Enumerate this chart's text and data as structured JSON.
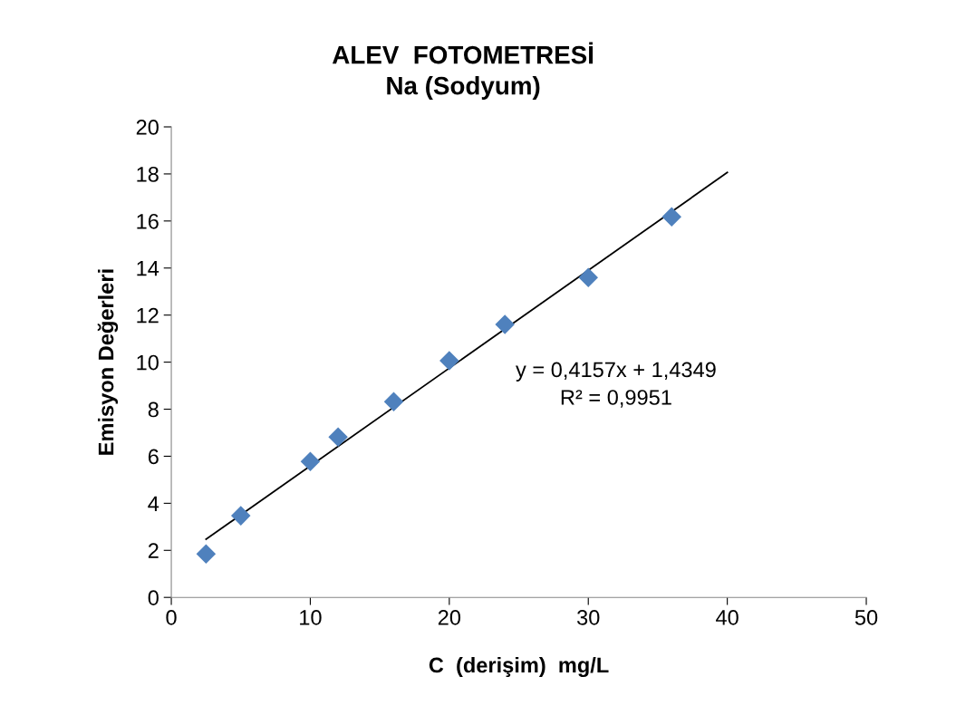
{
  "chart_data": {
    "type": "scatter",
    "title": "ALEV  FOTOMETRESİ\nNa (Sodyum)",
    "xlabel": "C  (derişim)  mg/L",
    "ylabel": "Emisyon Değerleri",
    "xlim": [
      0,
      50
    ],
    "xticks": [
      0,
      10,
      20,
      30,
      40,
      50
    ],
    "ylim": [
      0,
      20
    ],
    "yticks": [
      0,
      2,
      4,
      6,
      8,
      10,
      12,
      14,
      16,
      18,
      20
    ],
    "grid": false,
    "legend": false,
    "series": [
      {
        "type": "scatter",
        "color": "#4f81bd",
        "marker": "diamond",
        "x": [
          2.5,
          5,
          10,
          12,
          16,
          20,
          24,
          30,
          36
        ],
        "values": [
          1.85,
          3.47,
          5.78,
          6.82,
          8.32,
          10.06,
          11.6,
          13.6,
          16.18
        ]
      },
      {
        "type": "line",
        "color": "#000000",
        "marker": "none",
        "line_style": "solid",
        "x": [
          2.5,
          40
        ],
        "values": [
          2.47,
          18.06
        ]
      }
    ],
    "annotations": [
      "y = 0,4157x + 1,4349\nR² = 0,9951"
    ]
  }
}
